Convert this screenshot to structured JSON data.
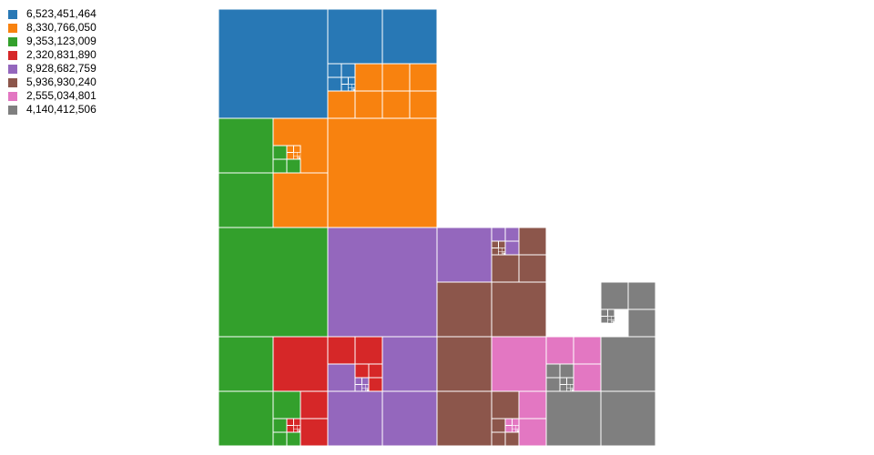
{
  "chart_data": {
    "type": "treemap",
    "legend_position": "top-left",
    "legend": [
      {
        "label": "6,523,451,464",
        "color": "#2878b5"
      },
      {
        "label": "8,330,766,050",
        "color": "#f8820f"
      },
      {
        "label": "9,353,123,009",
        "color": "#33a02c"
      },
      {
        "label": "2,320,831,890",
        "color": "#d62728"
      },
      {
        "label": "8,928,682,759",
        "color": "#9467bd"
      },
      {
        "label": "5,936,930,240",
        "color": "#8c564b"
      },
      {
        "label": "2,555,034,801",
        "color": "#e377c2"
      },
      {
        "label": "4,140,412,506",
        "color": "#7f7f7f"
      }
    ]
  }
}
